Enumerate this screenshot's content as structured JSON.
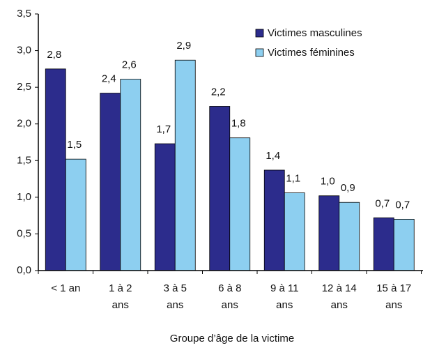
{
  "chart_data": {
    "type": "bar",
    "x_label": "Groupe d’âge de la victime",
    "categories": [
      [
        "< 1 an"
      ],
      [
        "1 à 2",
        "ans"
      ],
      [
        "3 à 5",
        "ans"
      ],
      [
        "6 à 8",
        "ans"
      ],
      [
        "9 à 11",
        "ans"
      ],
      [
        "12 à 14",
        "ans"
      ],
      [
        "15 à 17",
        "ans"
      ]
    ],
    "series": [
      {
        "name": "Victimes masculines",
        "color": "#2c2c8c",
        "values": [
          2.75,
          2.42,
          1.73,
          2.24,
          1.37,
          1.02,
          0.72
        ],
        "value_labels": [
          "2,8",
          "2,4",
          "1,7",
          "2,2",
          "1,4",
          "1,0",
          "0,7"
        ]
      },
      {
        "name": "Victimes féminines",
        "color": "#8dcff0",
        "values": [
          1.52,
          2.61,
          2.87,
          1.81,
          1.06,
          0.93,
          0.7
        ],
        "value_labels": [
          "1,5",
          "2,6",
          "2,9",
          "1,8",
          "1,1",
          "0,9",
          "0,7"
        ]
      }
    ],
    "ylim": [
      0,
      3.5
    ],
    "yticks": [
      {
        "value": 0,
        "label": "0,0"
      },
      {
        "value": 0.5,
        "label": "0,5"
      },
      {
        "value": 1,
        "label": "1,0"
      },
      {
        "value": 1.5,
        "label": "1,5"
      },
      {
        "value": 2,
        "label": "2,0"
      },
      {
        "value": 2.5,
        "label": "2,5"
      },
      {
        "value": 3,
        "label": "3,0"
      },
      {
        "value": 3.5,
        "label": "3,5"
      }
    ],
    "legend": "upper right"
  }
}
